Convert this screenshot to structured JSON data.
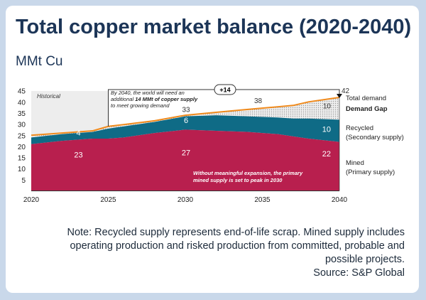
{
  "title": "Total copper market balance (2020-2040)",
  "subtitle": "MMt Cu",
  "note": "Note: Recycled supply represents end-of-life scrap. Mined supply includes operating production and risked production from committed, probable and possible projects.",
  "source": "Source: S&P Global",
  "chart_data": {
    "type": "area",
    "title": "Total copper market balance (2020-2040)",
    "ylabel": "MMt Cu",
    "ylim": [
      0,
      45
    ],
    "yticks": [
      5,
      10,
      15,
      20,
      25,
      30,
      35,
      40,
      45
    ],
    "xticks": [
      2020,
      2025,
      2030,
      2035,
      2040
    ],
    "x": [
      2020,
      2022,
      2024,
      2025,
      2026,
      2028,
      2030,
      2032,
      2034,
      2036,
      2037,
      2038,
      2040
    ],
    "series": [
      {
        "name": "Mined (Primary supply)",
        "color": "#b81f4e",
        "values": [
          21,
          22.5,
          23.5,
          23.5,
          24,
          26,
          27.5,
          27,
          26.5,
          25.5,
          24.5,
          23.5,
          22
        ]
      },
      {
        "name": "Recycled (Secondary supply)",
        "color": "#0f6b86",
        "cumulative": [
          24,
          25.5,
          26.5,
          28,
          29,
          31,
          33.5,
          34,
          33.5,
          33,
          32.5,
          32.5,
          32
        ]
      },
      {
        "name": "Total demand",
        "color": "#f08a1c",
        "values": [
          25,
          26,
          27,
          29,
          29.8,
          31.5,
          34,
          35.3,
          36.6,
          37.8,
          38.4,
          40,
          42
        ]
      }
    ],
    "legend": {
      "total": "Total demand",
      "gap": "Demand Gap",
      "recycled": [
        "Recycled",
        "(Secondary supply)"
      ],
      "mined": [
        "Mined",
        "(Primary supply)"
      ]
    },
    "data_labels": {
      "mined": [
        "23",
        "27",
        "22"
      ],
      "recycled": [
        "4",
        "6",
        "10"
      ],
      "demand": [
        "33",
        "38",
        "42"
      ],
      "gap": "10"
    },
    "annotations": {
      "historical": "Historical",
      "callout": [
        "By 2040, the world will need an",
        "additional ",
        "14 MMt of copper supply",
        "to meet growing demand"
      ],
      "delta": "+14",
      "mined_note": [
        "Without meaningful expansion, the primary",
        "mined supply is set to peak in 2030"
      ]
    }
  }
}
